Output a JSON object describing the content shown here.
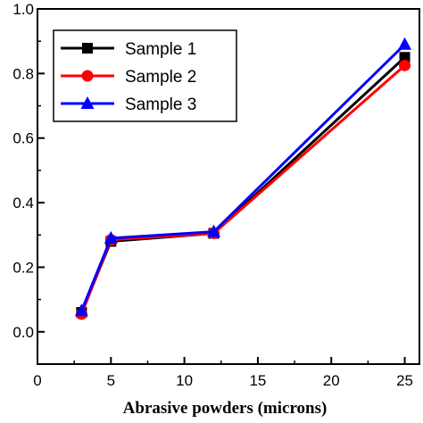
{
  "chart_data": {
    "type": "line",
    "title": "",
    "xlabel": "Abrasive powders (microns)",
    "ylabel": "",
    "xlim": [
      0,
      26
    ],
    "ylim": [
      -0.1,
      1.0
    ],
    "xticks": [
      0,
      5,
      10,
      15,
      20,
      25
    ],
    "xtick_labels": [
      "0",
      "5",
      "10",
      "15",
      "20",
      "25"
    ],
    "yticks": [
      0.0,
      0.2,
      0.4,
      0.6,
      0.8,
      1.0
    ],
    "ytick_labels": [
      "0.0",
      "0.2",
      "0.4",
      "0.6",
      "0.8",
      "1.0"
    ],
    "grid": false,
    "legend_position": "top-left",
    "x": [
      3,
      5,
      12,
      25
    ],
    "series": [
      {
        "name": "Sample 1",
        "color": "#000000",
        "marker": "square",
        "values": [
          0.06,
          0.28,
          0.305,
          0.85
        ]
      },
      {
        "name": "Sample 2",
        "color": "#ff0000",
        "marker": "circle",
        "values": [
          0.055,
          0.285,
          0.305,
          0.825
        ]
      },
      {
        "name": "Sample 3",
        "color": "#0000ff",
        "marker": "triangle",
        "values": [
          0.065,
          0.29,
          0.31,
          0.89
        ]
      }
    ]
  }
}
